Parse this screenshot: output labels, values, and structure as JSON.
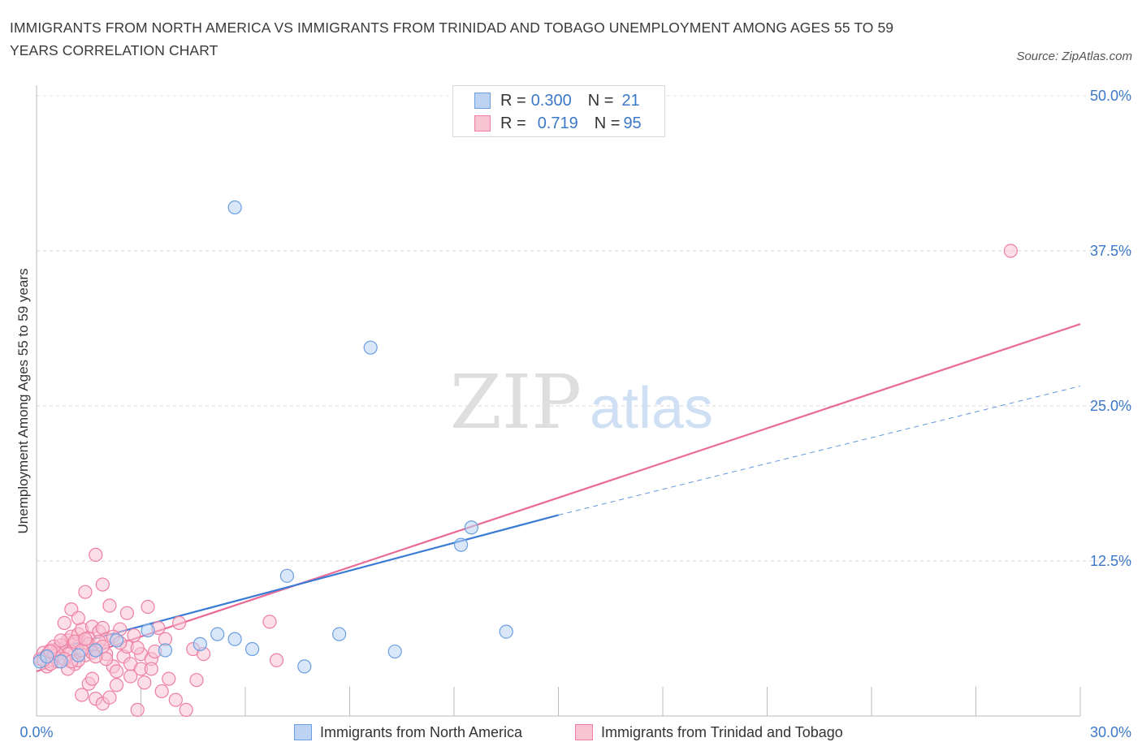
{
  "title_line1": "IMMIGRANTS FROM NORTH AMERICA VS IMMIGRANTS FROM TRINIDAD AND TOBAGO UNEMPLOYMENT AMONG AGES 55 TO 59",
  "title_line2": "YEARS CORRELATION CHART",
  "source": "Source: ZipAtlas.com",
  "watermark": {
    "zip": "ZIP",
    "atlas": "atlas"
  },
  "colors": {
    "blue": "#6a9fe0",
    "blue_fill": "#bcd3f3",
    "blue_line": "#3a7bd5",
    "pink": "#ee7fa2",
    "pink_fill": "#f8c3d3",
    "pink_line": "#e86a95",
    "axis_text": "#3c78c8"
  },
  "legend_top": {
    "rows": [
      {
        "r_label": "R = ",
        "r_value": "0.300",
        "n_label": "N = ",
        "n_value": "21"
      },
      {
        "r_label": "R = ",
        "r_value": "0.719",
        "n_label": "N = ",
        "n_value": "95"
      }
    ]
  },
  "legend_bottom": {
    "items": [
      "Immigrants from North America",
      "Immigrants from Trinidad and Tobago"
    ]
  },
  "chart_data": {
    "type": "scatter",
    "title": "IMMIGRANTS FROM NORTH AMERICA VS IMMIGRANTS FROM TRINIDAD AND TOBAGO UNEMPLOYMENT AMONG AGES 55 TO 59 YEARS CORRELATION CHART",
    "xlabel": "",
    "ylabel": "Unemployment Among Ages 55 to 59 years",
    "xlim": [
      0,
      30
    ],
    "ylim": [
      0,
      50
    ],
    "x_tick_labels": [
      "0.0%",
      "30.0%"
    ],
    "y_tick_labels": [
      "12.5%",
      "25.0%",
      "37.5%",
      "50.0%"
    ],
    "y_ticks": [
      12.5,
      25.0,
      37.5,
      50.0
    ],
    "grid": "horizontal dashed",
    "legend_position": "bottom",
    "series": [
      {
        "name": "Immigrants from North America",
        "color": "#6a9fe0",
        "points": [
          [
            0.1,
            4.4
          ],
          [
            0.7,
            4.4
          ],
          [
            1.2,
            4.9
          ],
          [
            1.7,
            5.3
          ],
          [
            2.3,
            6.1
          ],
          [
            3.2,
            6.9
          ],
          [
            3.7,
            5.3
          ],
          [
            4.7,
            5.8
          ],
          [
            5.2,
            6.6
          ],
          [
            5.7,
            6.2
          ],
          [
            5.7,
            41.0
          ],
          [
            6.2,
            5.4
          ],
          [
            7.2,
            11.3
          ],
          [
            7.7,
            4.0
          ],
          [
            8.7,
            6.6
          ],
          [
            9.6,
            29.7
          ],
          [
            10.3,
            5.2
          ],
          [
            12.2,
            13.8
          ],
          [
            12.5,
            15.2
          ],
          [
            13.5,
            6.8
          ],
          [
            0.3,
            4.8
          ]
        ],
        "trend": {
          "x": [
            0,
            15
          ],
          "y": [
            5.0,
            16.2
          ],
          "dashed_extension": {
            "x": [
              15,
              30
            ],
            "y": [
              16.2,
              26.6
            ]
          }
        }
      },
      {
        "name": "Immigrants from Trinidad and Tobago",
        "color": "#ee7fa2",
        "points": [
          [
            0.1,
            4.6
          ],
          [
            0.2,
            5.1
          ],
          [
            0.3,
            4.9
          ],
          [
            0.4,
            5.3
          ],
          [
            0.5,
            5.0
          ],
          [
            0.6,
            5.4
          ],
          [
            0.7,
            4.7
          ],
          [
            0.8,
            5.5
          ],
          [
            0.9,
            6.1
          ],
          [
            1.0,
            6.4
          ],
          [
            1.1,
            5.8
          ],
          [
            1.2,
            6.6
          ],
          [
            1.3,
            7.0
          ],
          [
            1.4,
            5.9
          ],
          [
            1.5,
            6.3
          ],
          [
            1.6,
            7.2
          ],
          [
            1.7,
            5.4
          ],
          [
            1.8,
            6.8
          ],
          [
            1.9,
            7.1
          ],
          [
            2.0,
            6.2
          ],
          [
            0.8,
            7.5
          ],
          [
            1.0,
            8.6
          ],
          [
            1.2,
            7.9
          ],
          [
            1.4,
            10.0
          ],
          [
            1.7,
            13.0
          ],
          [
            1.9,
            10.6
          ],
          [
            2.1,
            8.9
          ],
          [
            2.6,
            8.3
          ],
          [
            3.2,
            8.8
          ],
          [
            2.4,
            7.0
          ],
          [
            2.8,
            6.5
          ],
          [
            3.0,
            5.0
          ],
          [
            3.3,
            4.6
          ],
          [
            3.5,
            7.1
          ],
          [
            4.1,
            7.5
          ],
          [
            4.5,
            5.4
          ],
          [
            4.8,
            5.0
          ],
          [
            6.7,
            7.6
          ],
          [
            6.9,
            4.5
          ],
          [
            2.2,
            4.0
          ],
          [
            2.7,
            3.2
          ],
          [
            3.1,
            2.7
          ],
          [
            3.6,
            2.0
          ],
          [
            4.0,
            1.3
          ],
          [
            4.6,
            2.9
          ],
          [
            1.5,
            2.6
          ],
          [
            1.7,
            1.4
          ],
          [
            1.9,
            1.0
          ],
          [
            2.1,
            1.5
          ],
          [
            1.3,
            1.7
          ],
          [
            1.6,
            3.0
          ],
          [
            2.3,
            2.5
          ],
          [
            2.9,
            0.5
          ],
          [
            4.3,
            0.5
          ],
          [
            3.8,
            3.0
          ],
          [
            2.5,
            4.8
          ],
          [
            2.0,
            5.0
          ],
          [
            1.1,
            4.2
          ],
          [
            0.9,
            3.8
          ],
          [
            0.6,
            4.4
          ],
          [
            1.4,
            4.9
          ],
          [
            2.6,
            5.6
          ],
          [
            3.4,
            5.2
          ],
          [
            0.3,
            4.0
          ],
          [
            0.5,
            4.8
          ],
          [
            0.7,
            5.7
          ],
          [
            1.0,
            5.2
          ],
          [
            1.2,
            4.5
          ],
          [
            1.5,
            5.8
          ],
          [
            1.8,
            6.0
          ],
          [
            2.2,
            6.4
          ],
          [
            2.4,
            5.9
          ],
          [
            0.4,
            4.2
          ],
          [
            0.2,
            4.5
          ],
          [
            0.9,
            5.0
          ],
          [
            1.1,
            6.0
          ],
          [
            1.6,
            5.1
          ],
          [
            2.0,
            4.6
          ],
          [
            2.7,
            4.2
          ],
          [
            3.0,
            3.8
          ],
          [
            0.6,
            5.0
          ],
          [
            0.8,
            4.6
          ],
          [
            1.3,
            5.3
          ],
          [
            1.7,
            4.8
          ],
          [
            2.9,
            5.5
          ],
          [
            3.7,
            6.2
          ],
          [
            0.5,
            5.6
          ],
          [
            1.0,
            4.4
          ],
          [
            1.4,
            6.2
          ],
          [
            1.9,
            5.6
          ],
          [
            2.3,
            3.6
          ],
          [
            3.3,
            3.8
          ],
          [
            0.4,
            5.2
          ],
          [
            0.7,
            6.1
          ],
          [
            28.0,
            37.5
          ]
        ],
        "trend": {
          "x": [
            0,
            30
          ],
          "y": [
            3.6,
            31.6
          ]
        }
      }
    ]
  }
}
